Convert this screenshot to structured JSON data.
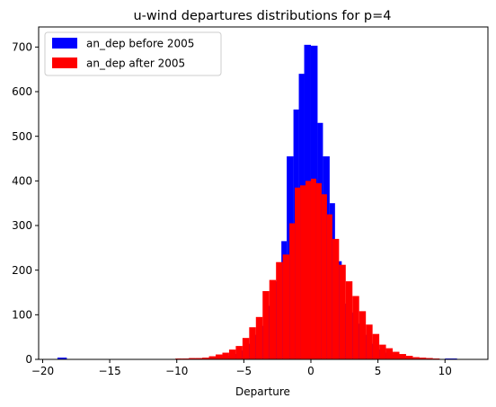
{
  "chart_data": {
    "type": "bar",
    "title": "u-wind departures distributions for p=4",
    "xlabel": "Departure",
    "ylabel": "",
    "xlim": [
      -20.3,
      13.2
    ],
    "ylim": [
      0,
      745
    ],
    "xticks": [
      -20,
      -15,
      -10,
      -5,
      0,
      5,
      10
    ],
    "yticks": [
      0,
      100,
      200,
      300,
      400,
      500,
      600,
      700
    ],
    "legend_position": "top-left",
    "series": [
      {
        "name": "an_dep before 2005",
        "color": "#0000ff",
        "bin_edges": [
          -18.9,
          -18.2,
          -11.0,
          -10.1,
          -9.2,
          -8.3,
          -7.4,
          -6.7,
          -6.2,
          -5.7,
          -5.2,
          -4.7,
          -4.2,
          -3.7,
          -3.2,
          -2.7,
          -2.2,
          -1.8,
          -1.3,
          -0.9,
          -0.5,
          0.0,
          0.5,
          0.9,
          1.4,
          1.8,
          2.3,
          2.7,
          3.2,
          3.7,
          4.2,
          4.7,
          5.2,
          5.7,
          6.2,
          6.7,
          7.2,
          7.7,
          8.2,
          8.8,
          9.4,
          10.0,
          10.9,
          11.8
        ],
        "counts": [
          4,
          0,
          1,
          1,
          2,
          3,
          4,
          6,
          8,
          12,
          20,
          35,
          55,
          75,
          120,
          175,
          265,
          455,
          560,
          640,
          705,
          703,
          530,
          455,
          350,
          220,
          125,
          105,
          80,
          55,
          35,
          22,
          15,
          10,
          6,
          4,
          3,
          2,
          1,
          1,
          1,
          2,
          1
        ]
      },
      {
        "name": "an_dep after 2005",
        "color": "#ff0000",
        "bin_edges": [
          -18.9,
          -18.3,
          -11.1,
          -10.6,
          -10.1,
          -9.6,
          -9.1,
          -8.6,
          -8.1,
          -7.6,
          -7.1,
          -6.6,
          -6.1,
          -5.6,
          -5.1,
          -4.6,
          -4.1,
          -3.6,
          -3.1,
          -2.6,
          -2.1,
          -1.6,
          -1.2,
          -0.8,
          -0.4,
          0.0,
          0.4,
          0.8,
          1.2,
          1.6,
          2.1,
          2.6,
          3.1,
          3.6,
          4.1,
          4.6,
          5.1,
          5.6,
          6.1,
          6.6,
          7.1,
          7.6,
          8.1,
          8.6,
          9.1,
          9.6,
          10.1
        ],
        "counts": [
          1,
          0,
          1,
          1,
          2,
          2,
          3,
          3,
          4,
          7,
          11,
          15,
          22,
          30,
          48,
          72,
          95,
          153,
          178,
          218,
          235,
          305,
          385,
          390,
          400,
          405,
          395,
          370,
          325,
          270,
          212,
          175,
          142,
          108,
          78,
          57,
          33,
          25,
          17,
          12,
          8,
          5,
          4,
          3,
          2,
          1
        ]
      }
    ]
  }
}
